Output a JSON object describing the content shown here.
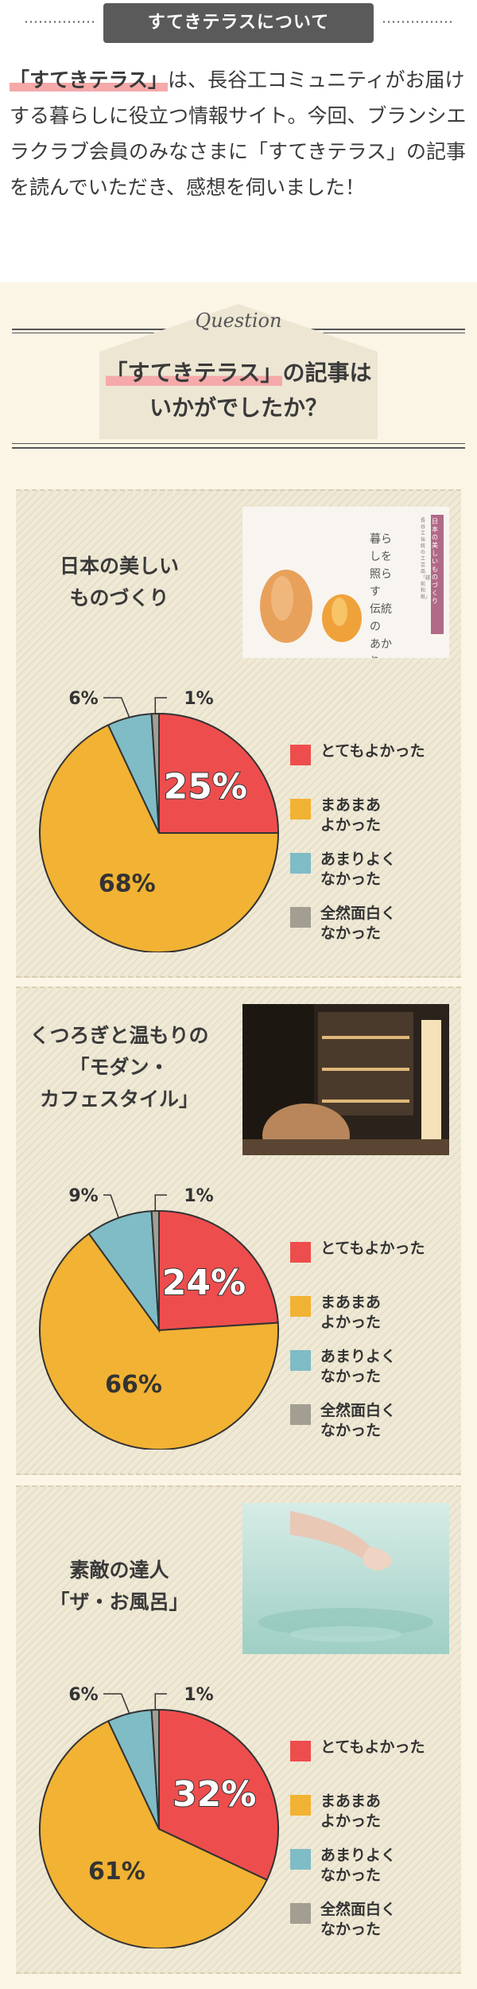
{
  "header": {
    "title": "すてきテラスについて"
  },
  "intro": {
    "highlight": "「すてきテラス」",
    "text": "は、長谷工コミュニティがお届けする暮らしに役立つ情報サイト。今回、ブランシエラクラブ会員のみなさまに「すてきテラス」の記事を読んでいただき、感想を伺いました！"
  },
  "question": {
    "label": "Question",
    "title_hl": "「すてきテラス」",
    "title_rest": "の記事は",
    "title_line2": "いかがでしたか？"
  },
  "legend": {
    "items": [
      {
        "label": "とてもよかった",
        "color": "#ee4d4d"
      },
      {
        "label": "まあまあ\nよかった",
        "color": "#f2b233"
      },
      {
        "label": "あまりよく\nなかった",
        "color": "#7fbcc6"
      },
      {
        "label": "全然面白く\nなかった",
        "color": "#a39e92"
      }
    ]
  },
  "cards": [
    {
      "title": "日本の美しい\nものづくり",
      "photo_text": "暮らしを\n照らす\n伝統の\nあかり",
      "photo_tag": "日本の美しいものづくり",
      "photo_note": "長谷工伝統の工芸品「越前和紙」"
    },
    {
      "title": "くつろぎと温もりの\n「モダン・\nカフェスタイル」"
    },
    {
      "title": "素敵の達人\n「ザ・お風呂」"
    }
  ],
  "chart_data": [
    {
      "type": "pie",
      "title": "日本の美しいものづくり",
      "categories": [
        "とてもよかった",
        "まあまあよかった",
        "あまりよくなかった",
        "全然面白くなかった"
      ],
      "values": [
        25,
        68,
        6,
        1
      ],
      "labels": [
        "25%",
        "68%",
        "6%",
        "1%"
      ]
    },
    {
      "type": "pie",
      "title": "くつろぎと温もりの「モダン・カフェスタイル」",
      "categories": [
        "とてもよかった",
        "まあまあよかった",
        "あまりよくなかった",
        "全然面白くなかった"
      ],
      "values": [
        24,
        66,
        9,
        1
      ],
      "labels": [
        "24%",
        "66%",
        "9%",
        "1%"
      ]
    },
    {
      "type": "pie",
      "title": "素敵の達人「ザ・お風呂」",
      "categories": [
        "とてもよかった",
        "まあまあよかった",
        "あまりよくなかった",
        "全然面白くなかった"
      ],
      "values": [
        32,
        61,
        6,
        1
      ],
      "labels": [
        "32%",
        "61%",
        "6%",
        "1%"
      ]
    }
  ]
}
